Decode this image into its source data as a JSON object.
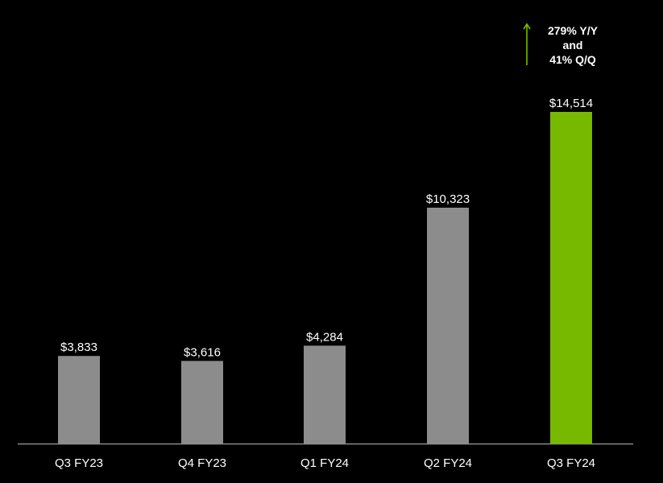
{
  "chart_data": {
    "type": "bar",
    "categories": [
      "Q3 FY23",
      "Q4 FY23",
      "Q1 FY24",
      "Q2 FY24",
      "Q3 FY24"
    ],
    "values": [
      3833,
      3616,
      4284,
      10323,
      14514
    ],
    "value_labels": [
      "$3,833",
      "$3,616",
      "$4,284",
      "$10,323",
      "$14,514"
    ],
    "title": "",
    "xlabel": "",
    "ylabel": "",
    "ylim": [
      0,
      14514
    ],
    "grid": false,
    "colors": {
      "default_bar": "#8c8c8c",
      "highlight_bar": "#76b900",
      "axis": "#8c8c8c",
      "text": "#ffffff"
    },
    "highlight_index": 4,
    "annotation": {
      "lines": [
        "279% Y/Y",
        "and",
        "41% Q/Q"
      ],
      "icon": "arrow-up-icon"
    }
  }
}
